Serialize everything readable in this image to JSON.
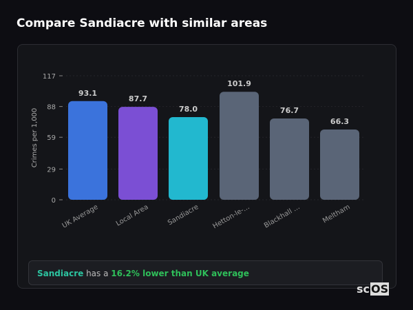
{
  "title": "Compare Sandiacre with similar areas",
  "chart_data": {
    "type": "bar",
    "ylabel": "Crimes per 1,000",
    "ylim": [
      0,
      117
    ],
    "yticks": [
      0,
      29,
      59,
      88,
      117
    ],
    "grid": true,
    "categories": [
      "UK Average",
      "Local Area",
      "Sandiacre",
      "Hetton-le-...",
      "Blackhall ...",
      "Meltham"
    ],
    "values": [
      93.1,
      87.7,
      78.0,
      101.9,
      76.7,
      66.3
    ],
    "labels": [
      "93.1",
      "87.7",
      "78.0",
      "101.9",
      "76.7",
      "66.3"
    ],
    "colors": [
      "#3b73dc",
      "#7b4fd4",
      "#22b8cf",
      "#5a6577",
      "#5a6577",
      "#5a6577"
    ]
  },
  "summary": {
    "area": "Sandiacre",
    "middle": " has a ",
    "highlight": "16.2% lower than UK average",
    "area_color": "#2cc4a0",
    "highlight_color": "#2fbf5a"
  },
  "logo": {
    "prefix": "sc",
    "suffix": "OS"
  }
}
